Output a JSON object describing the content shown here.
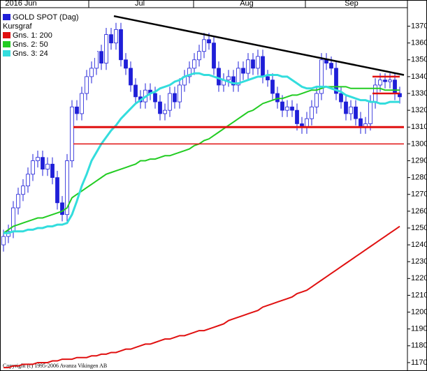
{
  "chart_data": {
    "type": "candlestick",
    "title": "GOLD SPOT (Dag)",
    "subtitle": "Kursgraf",
    "months": [
      "2016 Jun",
      "Jul",
      "Aug",
      "Sep"
    ],
    "copyright": "Copyright (c) 1995-2006 Avanza Vikingen AB",
    "ylim": [
      1165,
      1381
    ],
    "yticks": [
      1170,
      1180,
      1190,
      1200,
      1210,
      1220,
      1230,
      1240,
      1250,
      1260,
      1270,
      1280,
      1290,
      1300,
      1310,
      1320,
      1330,
      1340,
      1350,
      1360,
      1370
    ],
    "up_color": "#ffffff",
    "down_color": "#1f1fd8",
    "color": "#1f1fd8",
    "open": [
      1240,
      1245,
      1248,
      1262,
      1270,
      1275,
      1282,
      1290,
      1292,
      1285,
      1288,
      1280,
      1265,
      1258,
      1290,
      1322,
      1318,
      1330,
      1340,
      1345,
      1355,
      1348,
      1365,
      1360,
      1368,
      1350,
      1345,
      1335,
      1328,
      1325,
      1332,
      1330,
      1325,
      1318,
      1320,
      1330,
      1325,
      1335,
      1340,
      1345,
      1350,
      1355,
      1362,
      1360,
      1345,
      1335,
      1338,
      1340,
      1335,
      1345,
      1342,
      1350,
      1345,
      1352,
      1340,
      1338,
      1330,
      1325,
      1320,
      1322,
      1320,
      1312,
      1310,
      1315,
      1322,
      1330,
      1350,
      1348,
      1345,
      1330,
      1325,
      1318,
      1322,
      1315,
      1310,
      1312,
      1325,
      1335,
      1338,
      1337,
      1338,
      1330
    ],
    "high": [
      1249,
      1252,
      1266,
      1274,
      1279,
      1286,
      1294,
      1296,
      1296,
      1292,
      1292,
      1284,
      1269,
      1294,
      1326,
      1326,
      1334,
      1344,
      1349,
      1359,
      1359,
      1369,
      1369,
      1372,
      1372,
      1354,
      1349,
      1339,
      1332,
      1336,
      1336,
      1334,
      1329,
      1324,
      1334,
      1334,
      1339,
      1344,
      1349,
      1354,
      1359,
      1366,
      1366,
      1364,
      1349,
      1342,
      1344,
      1344,
      1349,
      1349,
      1354,
      1354,
      1356,
      1356,
      1344,
      1342,
      1334,
      1329,
      1326,
      1326,
      1324,
      1316,
      1319,
      1326,
      1334,
      1354,
      1354,
      1352,
      1349,
      1334,
      1329,
      1326,
      1326,
      1319,
      1316,
      1329,
      1339,
      1342,
      1342,
      1342,
      1342,
      1334
    ],
    "low": [
      1236,
      1241,
      1244,
      1258,
      1266,
      1271,
      1278,
      1286,
      1281,
      1281,
      1276,
      1261,
      1254,
      1254,
      1286,
      1314,
      1314,
      1326,
      1336,
      1341,
      1344,
      1344,
      1356,
      1356,
      1346,
      1341,
      1331,
      1324,
      1321,
      1321,
      1326,
      1321,
      1314,
      1314,
      1316,
      1321,
      1321,
      1331,
      1336,
      1341,
      1346,
      1351,
      1356,
      1341,
      1331,
      1331,
      1334,
      1331,
      1331,
      1338,
      1338,
      1341,
      1341,
      1336,
      1334,
      1326,
      1321,
      1316,
      1316,
      1316,
      1308,
      1306,
      1306,
      1311,
      1318,
      1326,
      1344,
      1341,
      1326,
      1321,
      1314,
      1314,
      1311,
      1306,
      1306,
      1308,
      1321,
      1331,
      1333,
      1333,
      1326,
      1324
    ],
    "close": [
      1245,
      1248,
      1262,
      1270,
      1275,
      1282,
      1290,
      1292,
      1285,
      1288,
      1280,
      1265,
      1258,
      1290,
      1322,
      1318,
      1330,
      1340,
      1345,
      1355,
      1348,
      1365,
      1360,
      1368,
      1350,
      1345,
      1335,
      1328,
      1325,
      1332,
      1330,
      1325,
      1318,
      1320,
      1330,
      1325,
      1335,
      1340,
      1345,
      1350,
      1355,
      1362,
      1360,
      1345,
      1335,
      1338,
      1340,
      1335,
      1345,
      1342,
      1350,
      1345,
      1352,
      1340,
      1338,
      1330,
      1325,
      1320,
      1322,
      1320,
      1312,
      1310,
      1315,
      1322,
      1330,
      1350,
      1348,
      1345,
      1330,
      1325,
      1318,
      1322,
      1315,
      1310,
      1312,
      1325,
      1335,
      1338,
      1337,
      1338,
      1330,
      1328
    ],
    "series": [
      {
        "name": "Gns. 1: 200",
        "color": "#e01010",
        "values": [
          1167,
          1167,
          1168,
          1168,
          1169,
          1169,
          1169,
          1170,
          1170,
          1170,
          1171,
          1171,
          1172,
          1172,
          1172,
          1173,
          1173,
          1173,
          1174,
          1174,
          1175,
          1175,
          1176,
          1176,
          1177,
          1178,
          1178,
          1179,
          1180,
          1181,
          1181,
          1182,
          1183,
          1184,
          1184,
          1185,
          1186,
          1186,
          1187,
          1188,
          1189,
          1189,
          1190,
          1191,
          1192,
          1193,
          1195,
          1196,
          1197,
          1198,
          1199,
          1200,
          1201,
          1203,
          1204,
          1205,
          1206,
          1207,
          1208,
          1209,
          1211,
          1212,
          1213,
          1215,
          1217,
          1219,
          1221,
          1223,
          1225,
          1227,
          1229,
          1231,
          1233,
          1235,
          1237,
          1239,
          1241,
          1243,
          1245,
          1247,
          1249,
          1251
        ]
      },
      {
        "name": "Gns. 2: 50",
        "color": "#22cc22",
        "values": [
          1247,
          1249,
          1251,
          1252,
          1253,
          1254,
          1255,
          1256,
          1256,
          1257,
          1258,
          1259,
          1260,
          1262,
          1268,
          1270,
          1272,
          1274,
          1276,
          1278,
          1280,
          1282,
          1283,
          1284,
          1285,
          1286,
          1287,
          1288,
          1290,
          1290,
          1291,
          1291,
          1292,
          1293,
          1293,
          1294,
          1295,
          1296,
          1297,
          1299,
          1300,
          1302,
          1303,
          1305,
          1307,
          1309,
          1311,
          1313,
          1315,
          1317,
          1319,
          1320,
          1322,
          1324,
          1325,
          1326,
          1327,
          1327,
          1328,
          1329,
          1329,
          1330,
          1331,
          1332,
          1332,
          1333,
          1334,
          1334,
          1334,
          1334,
          1334,
          1333,
          1333,
          1333,
          1333,
          1333,
          1333,
          1333,
          1332,
          1332,
          1332,
          1332
        ]
      },
      {
        "name": "Gns. 3: 24",
        "color": "#33dddd",
        "values": [
          1247,
          1247,
          1248,
          1248,
          1248,
          1249,
          1249,
          1250,
          1250,
          1251,
          1251,
          1252,
          1252,
          1253,
          1258,
          1266,
          1275,
          1282,
          1290,
          1295,
          1300,
          1304,
          1308,
          1311,
          1315,
          1318,
          1321,
          1324,
          1326,
          1328,
          1330,
          1331,
          1333,
          1334,
          1335,
          1337,
          1338,
          1340,
          1341,
          1342,
          1342,
          1341,
          1341,
          1340,
          1339,
          1338,
          1337,
          1336,
          1336,
          1337,
          1338,
          1339,
          1340,
          1340,
          1341,
          1341,
          1341,
          1340,
          1340,
          1338,
          1336,
          1334,
          1333,
          1333,
          1334,
          1334,
          1334,
          1333,
          1332,
          1331,
          1329,
          1328,
          1327,
          1326,
          1326,
          1325,
          1325,
          1324,
          1324,
          1325,
          1325,
          1325
        ]
      }
    ],
    "trendline": {
      "color": "#000000",
      "values": [
        1376,
        1341
      ]
    },
    "hlines": [
      {
        "color": "#e01010",
        "value": 1310
      },
      {
        "color": "#e01010",
        "value": 1300
      },
      {
        "color": "#e01010",
        "value": 1340
      },
      {
        "color": "#e01010",
        "value": 1330
      }
    ]
  }
}
